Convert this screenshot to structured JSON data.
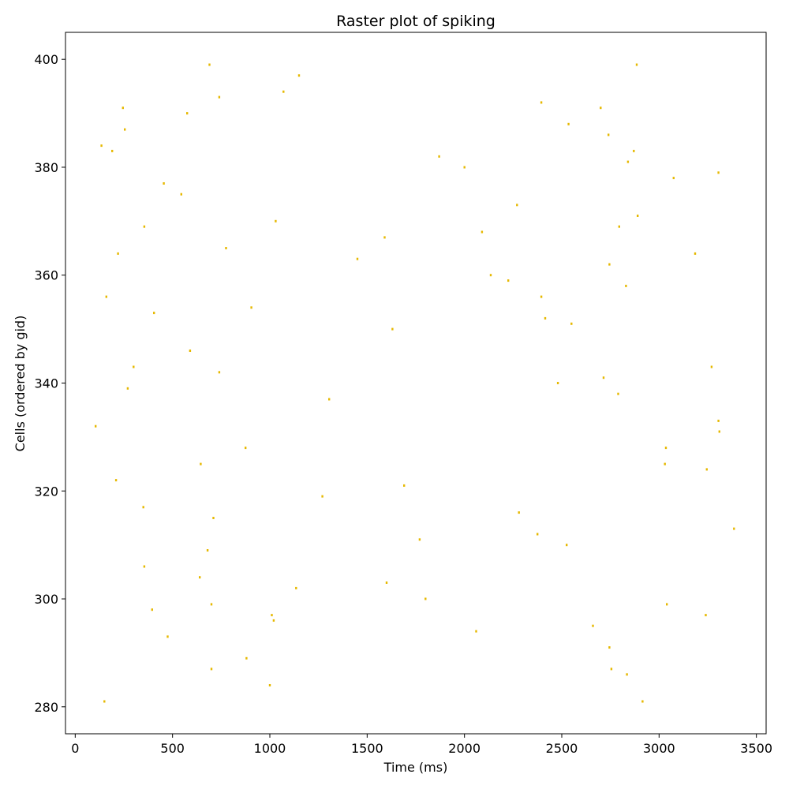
{
  "chart_data": {
    "type": "scatter",
    "title": "Raster plot of spiking",
    "xlabel": "Time (ms)",
    "ylabel": "Cells (ordered by gid)",
    "xlim": [
      -50,
      3550
    ],
    "ylim": [
      275,
      405
    ],
    "xticks": [
      0,
      500,
      1000,
      1500,
      2000,
      2500,
      3000,
      3500
    ],
    "yticks": [
      280,
      300,
      320,
      340,
      360,
      380,
      400
    ],
    "grid": false,
    "marker_color": "#e6b800",
    "series": [
      {
        "points": [
          [
            150,
            281
          ],
          [
            700,
            287
          ],
          [
            880,
            289
          ],
          [
            1000,
            284
          ],
          [
            475,
            293
          ],
          [
            395,
            298
          ],
          [
            700,
            299
          ],
          [
            1010,
            297
          ],
          [
            1020,
            296
          ],
          [
            1135,
            302
          ],
          [
            355,
            306
          ],
          [
            640,
            304
          ],
          [
            680,
            309
          ],
          [
            710,
            315
          ],
          [
            350,
            317
          ],
          [
            1270,
            319
          ],
          [
            210,
            322
          ],
          [
            645,
            325
          ],
          [
            875,
            328
          ],
          [
            105,
            332
          ],
          [
            1305,
            337
          ],
          [
            270,
            339
          ],
          [
            740,
            342
          ],
          [
            300,
            343
          ],
          [
            590,
            346
          ],
          [
            405,
            353
          ],
          [
            905,
            354
          ],
          [
            160,
            356
          ],
          [
            220,
            364
          ],
          [
            355,
            369
          ],
          [
            775,
            365
          ],
          [
            1030,
            370
          ],
          [
            545,
            375
          ],
          [
            455,
            377
          ],
          [
            135,
            384
          ],
          [
            190,
            383
          ],
          [
            575,
            390
          ],
          [
            255,
            387
          ],
          [
            245,
            391
          ],
          [
            690,
            399
          ],
          [
            740,
            393
          ],
          [
            1070,
            394
          ],
          [
            1150,
            397
          ],
          [
            1600,
            303
          ],
          [
            1800,
            300
          ],
          [
            2060,
            294
          ],
          [
            1690,
            321
          ],
          [
            1770,
            311
          ],
          [
            1630,
            350
          ],
          [
            1450,
            363
          ],
          [
            1590,
            367
          ],
          [
            1870,
            382
          ],
          [
            2000,
            380
          ],
          [
            2090,
            368
          ],
          [
            2135,
            360
          ],
          [
            2225,
            359
          ],
          [
            2270,
            373
          ],
          [
            2395,
            392
          ],
          [
            2395,
            356
          ],
          [
            2415,
            352
          ],
          [
            2280,
            316
          ],
          [
            2375,
            312
          ],
          [
            2525,
            310
          ],
          [
            2480,
            340
          ],
          [
            2550,
            351
          ],
          [
            2535,
            388
          ],
          [
            2700,
            391
          ],
          [
            2740,
            386
          ],
          [
            2745,
            362
          ],
          [
            2795,
            369
          ],
          [
            2840,
            381
          ],
          [
            2870,
            383
          ],
          [
            2890,
            371
          ],
          [
            2885,
            399
          ],
          [
            2830,
            358
          ],
          [
            2790,
            338
          ],
          [
            2715,
            341
          ],
          [
            2660,
            295
          ],
          [
            2745,
            291
          ],
          [
            2755,
            287
          ],
          [
            2835,
            286
          ],
          [
            2915,
            281
          ],
          [
            3040,
            299
          ],
          [
            3030,
            325
          ],
          [
            3035,
            328
          ],
          [
            3245,
            324
          ],
          [
            3240,
            297
          ],
          [
            3270,
            343
          ],
          [
            3305,
            333
          ],
          [
            3310,
            331
          ],
          [
            3385,
            313
          ],
          [
            3185,
            364
          ],
          [
            3075,
            378
          ],
          [
            3305,
            379
          ]
        ]
      }
    ]
  }
}
